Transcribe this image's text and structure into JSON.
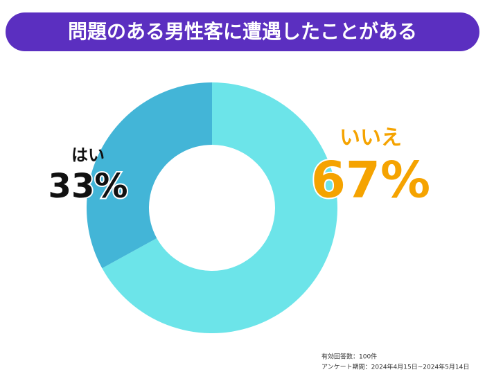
{
  "chart_data": {
    "type": "pie",
    "title": "問題のある男性客に遭遇したことがある",
    "categories": [
      "いいえ",
      "はい"
    ],
    "values": [
      67,
      33
    ],
    "value_labels": [
      "67%",
      "33%"
    ],
    "colors": [
      "#6ce4e9",
      "#43b5d7"
    ],
    "label_colors": [
      "#f5a300",
      "#111111"
    ],
    "notes": [
      "有効回答数：100件",
      "アンケート期間：2024年4月15日~2024年5月14日"
    ]
  }
}
